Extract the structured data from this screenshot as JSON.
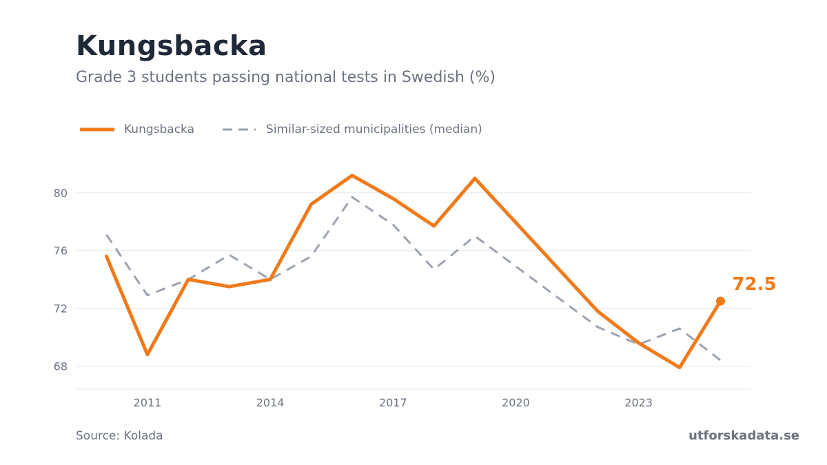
{
  "header": {
    "title": "Kungsbacka",
    "subtitle": "Grade 3 students passing national tests in Swedish (%)"
  },
  "footer": {
    "source": "Source: Kolada",
    "brand": "utforskadata.se"
  },
  "colors": {
    "primary": "#f07a1a",
    "median": "#9ca3af",
    "grid": "#e5e7eb",
    "text_muted": "#6b7280",
    "title": "#1f2937"
  },
  "chart_data": {
    "type": "line",
    "title": "Kungsbacka",
    "subtitle": "Grade 3 students passing national tests in Swedish (%)",
    "xlabel": "",
    "ylabel": "",
    "x": [
      2010,
      2011,
      2012,
      2013,
      2014,
      2015,
      2016,
      2017,
      2018,
      2019,
      2020,
      2021,
      2022,
      2023,
      2024,
      2025
    ],
    "x_ticks": [
      "2011",
      "2014",
      "2017",
      "2020",
      "2023"
    ],
    "y_ticks": [
      "68",
      "72",
      "76",
      "80"
    ],
    "ylim": [
      66.4,
      81.9
    ],
    "grid": "horizontal",
    "legend_position": "top-left",
    "series": [
      {
        "name": "Kungsbacka",
        "style": "solid",
        "color": "#f07a1a",
        "values": [
          75.6,
          68.8,
          74.0,
          73.5,
          74.0,
          79.2,
          81.2,
          79.6,
          77.7,
          81.0,
          null,
          null,
          71.8,
          69.6,
          67.9,
          72.5
        ],
        "end_label": "72.5"
      },
      {
        "name": "Similar-sized municipalities (median)",
        "style": "dashed",
        "color": "#9ca3af",
        "values": [
          77.1,
          72.9,
          74.0,
          75.7,
          74.0,
          75.6,
          79.7,
          77.8,
          74.7,
          77.0,
          null,
          null,
          70.7,
          69.5,
          70.6,
          68.4
        ]
      }
    ]
  }
}
